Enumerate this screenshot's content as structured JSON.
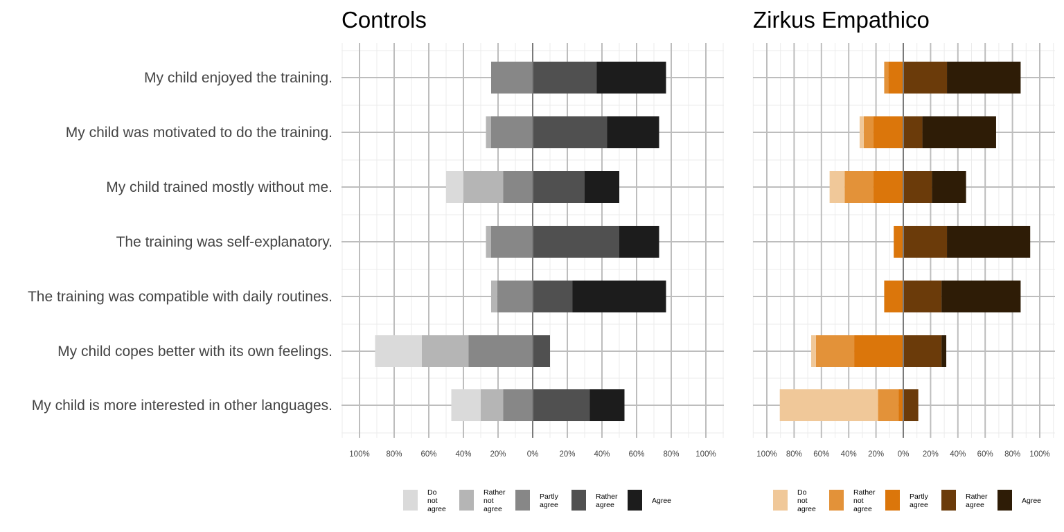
{
  "chart_data": {
    "type": "bar",
    "orientation": "horizontal-diverging",
    "categories": [
      "My child enjoyed the training.",
      "My child was motivated to do the training.",
      "My child trained mostly without me.",
      "The training was self-explanatory.",
      "The training was compatible with daily routines.",
      "My child copes better with its own feelings.",
      "My child is more interested in other languages."
    ],
    "levels": [
      "Do not agree",
      "Rather not agree",
      "Partly agree",
      "Rather agree",
      "Agree"
    ],
    "xlim": [
      -1.1,
      1.1
    ],
    "x_ticks": [
      -1,
      -0.8,
      -0.6,
      -0.4,
      -0.2,
      0,
      0.2,
      0.4,
      0.6,
      0.8,
      1
    ],
    "x_tick_labels": [
      "100%",
      "80%",
      "60%",
      "40%",
      "20%",
      "0%",
      "20%",
      "40%",
      "60%",
      "80%",
      "100%"
    ],
    "grid": true,
    "legend_position": "bottom",
    "panels": [
      {
        "title": "Controls",
        "colors": [
          "#dadada",
          "#b5b5b5",
          "#878787",
          "#505050",
          "#1c1c1c"
        ],
        "legend_labels": [
          [
            "Do",
            "not",
            "agree"
          ],
          [
            "Rather",
            "not",
            "agree"
          ],
          [
            "Partly",
            "agree"
          ],
          [
            "Rather",
            "agree"
          ],
          [
            "Agree"
          ]
        ],
        "series": [
          {
            "name": "Do not agree",
            "values": [
              0,
              0,
              0.1,
              0,
              0,
              0.27,
              0.17
            ]
          },
          {
            "name": "Rather not agree",
            "values": [
              0,
              0.03,
              0.23,
              0.03,
              0.035,
              0.27,
              0.13
            ]
          },
          {
            "name": "Partly agree",
            "values": [
              0.24,
              0.24,
              0.17,
              0.24,
              0.205,
              0.37,
              0.17
            ]
          },
          {
            "name": "Rather agree",
            "values": [
              0.37,
              0.43,
              0.3,
              0.5,
              0.23,
              0.1,
              0.33
            ]
          },
          {
            "name": "Agree",
            "values": [
              0.4,
              0.3,
              0.2,
              0.23,
              0.54,
              0,
              0.2
            ]
          }
        ]
      },
      {
        "title": "Zirkus Empathico",
        "colors": [
          "#f0c899",
          "#e39239",
          "#db760b",
          "#6b3b0a",
          "#2e1c06"
        ],
        "legend_labels": [
          [
            "Do",
            "not",
            "agree"
          ],
          [
            "Rather",
            "not",
            "agree"
          ],
          [
            "Partly",
            "agree"
          ],
          [
            "Rather",
            "agree"
          ],
          [
            "Agree"
          ]
        ],
        "series": [
          {
            "name": "Do not agree",
            "values": [
              0,
              0.03,
              0.11,
              0,
              0,
              0.035,
              0.72
            ]
          },
          {
            "name": "Rather not agree",
            "values": [
              0.03,
              0.07,
              0.21,
              0,
              0,
              0.28,
              0.15
            ]
          },
          {
            "name": "Partly agree",
            "values": [
              0.11,
              0.22,
              0.22,
              0.07,
              0.14,
              0.36,
              0.035
            ]
          },
          {
            "name": "Rather agree",
            "values": [
              0.32,
              0.14,
              0.21,
              0.32,
              0.28,
              0.28,
              0.11
            ]
          },
          {
            "name": "Agree",
            "values": [
              0.54,
              0.54,
              0.25,
              0.61,
              0.58,
              0.035,
              0
            ]
          }
        ]
      }
    ]
  }
}
